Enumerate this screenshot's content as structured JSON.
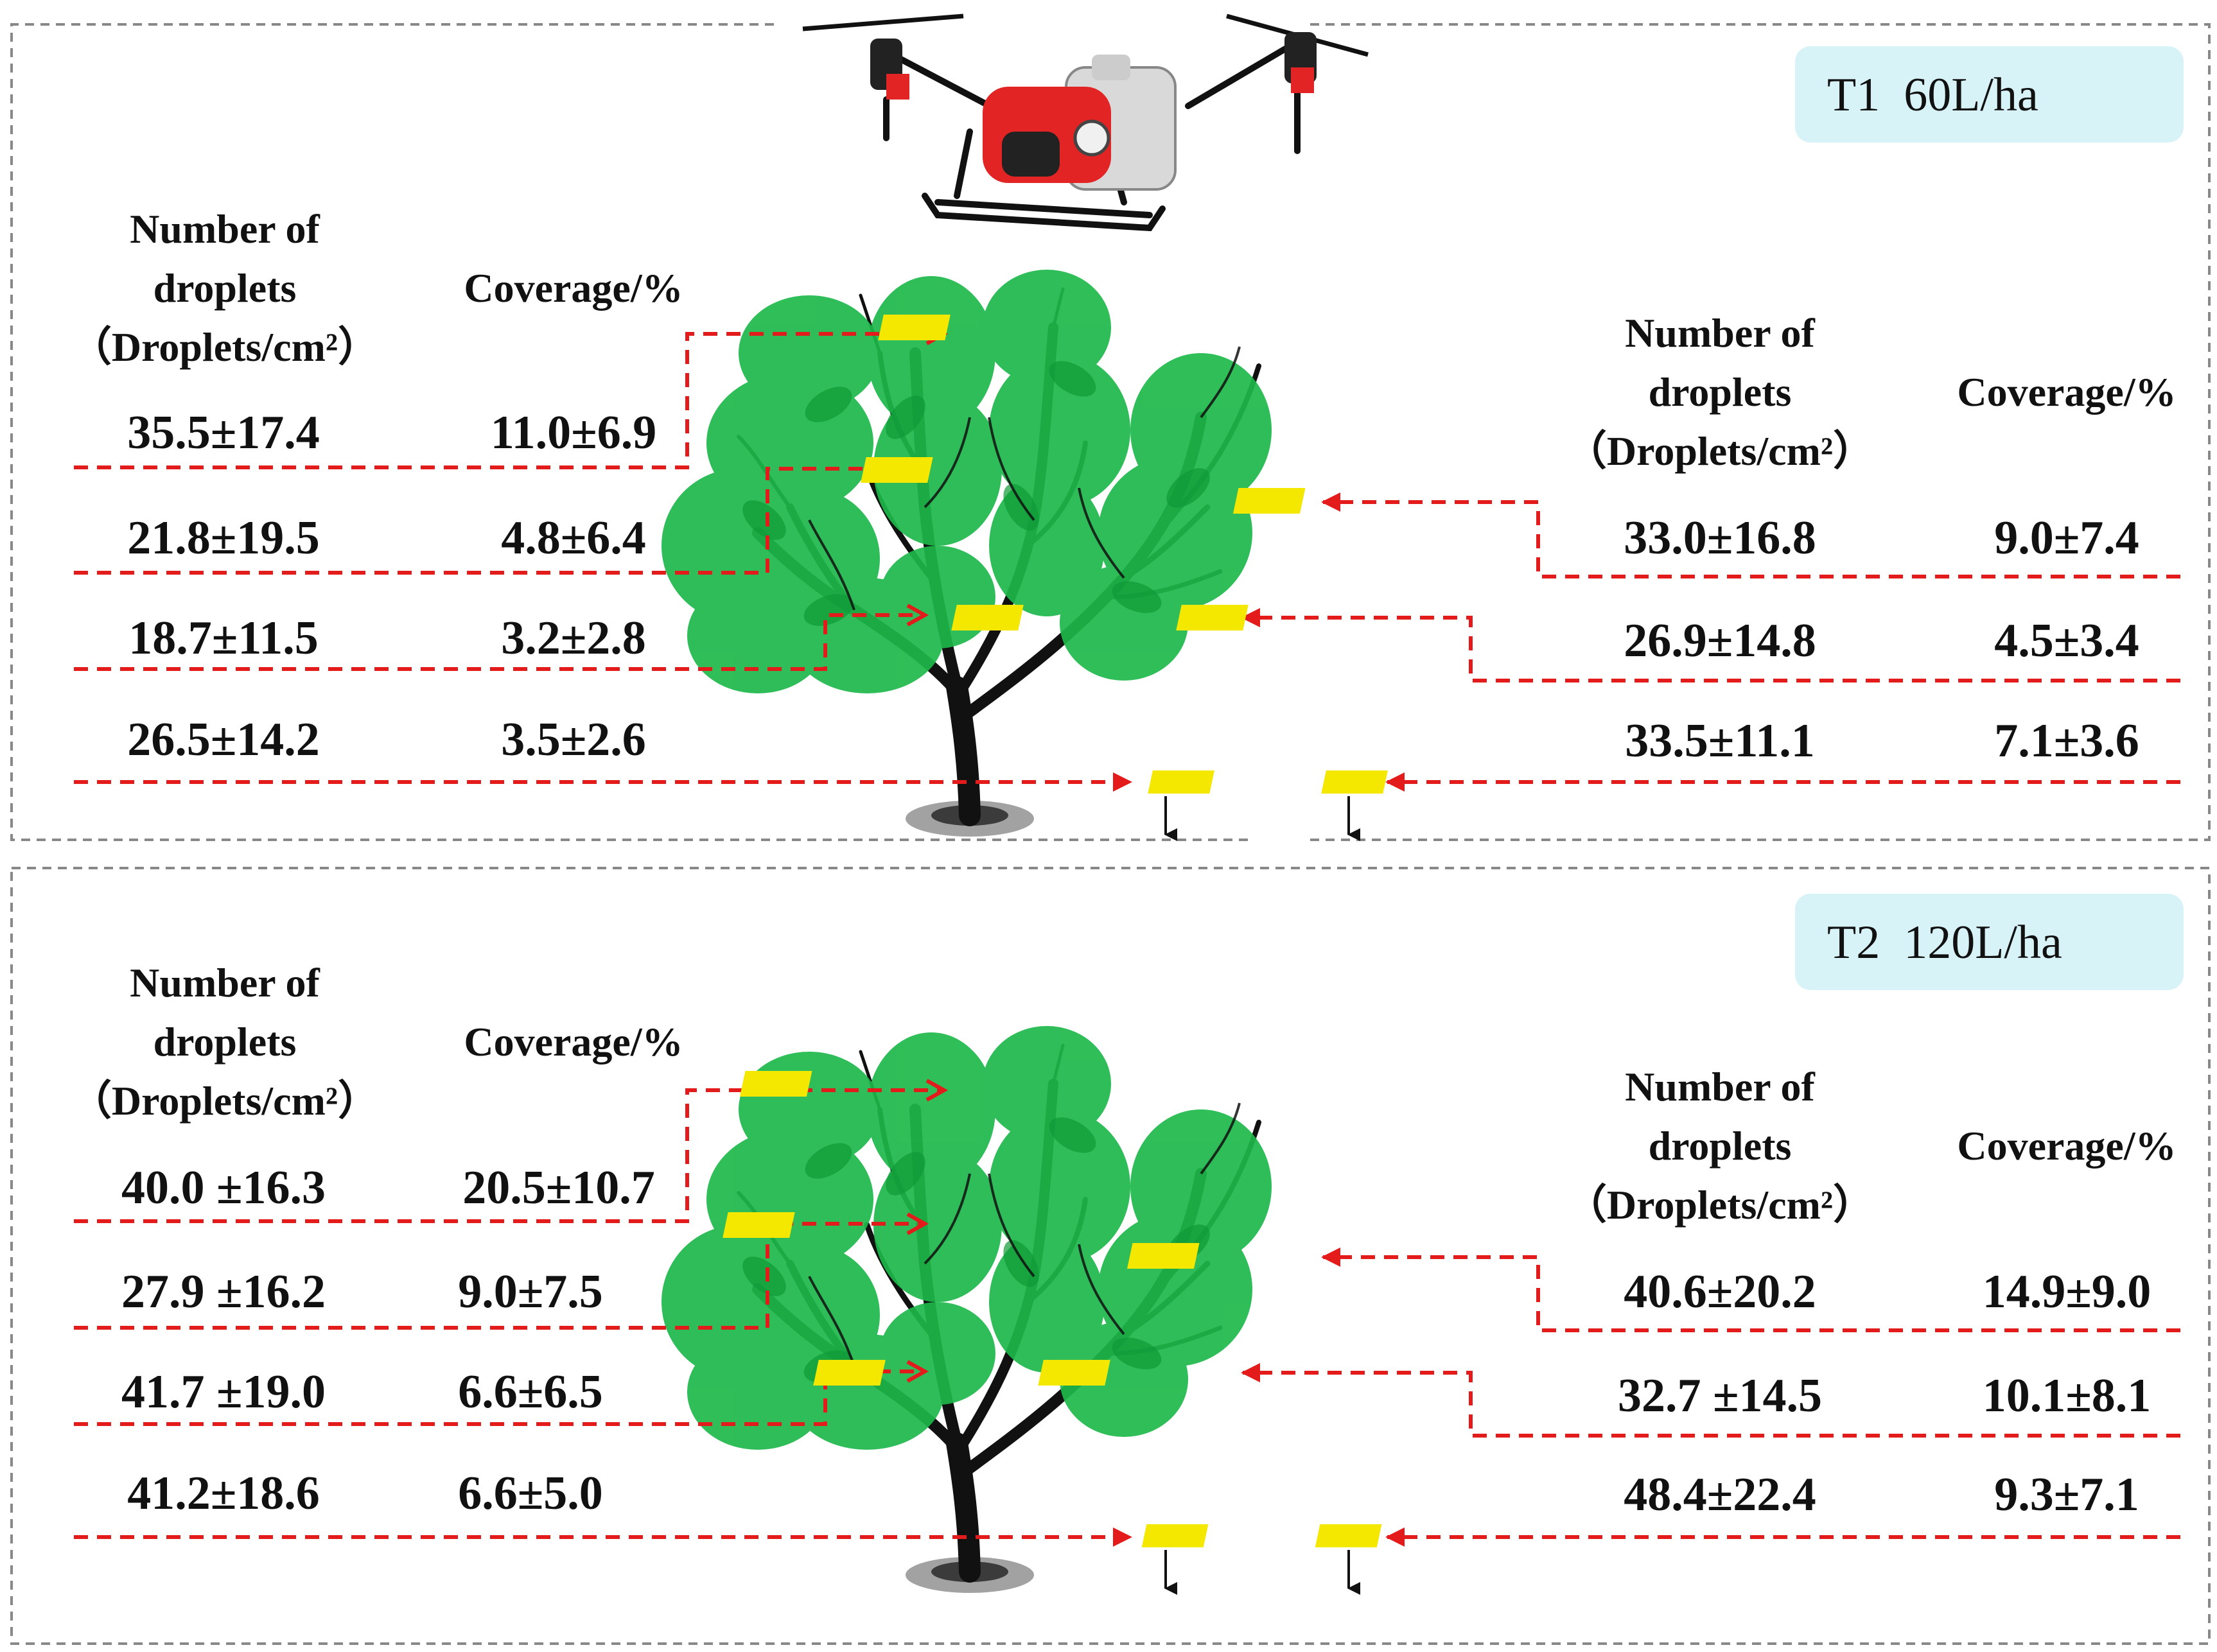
{
  "header": {
    "number_line1": "Number of",
    "number_line2": "droplets",
    "number_line3": "（Droplets/cm²）",
    "coverage": "Coverage/%"
  },
  "colors": {
    "leaf": "#1db84a",
    "branch": "#111111",
    "card": "#f5e800",
    "guide": "#e31b1b",
    "badge_bg": "#d8f3f8",
    "panel_border": "#888888",
    "drone_body": "#e32424"
  },
  "panels": [
    {
      "badge": "T1  60L/ha",
      "left_rows": [
        {
          "number": "35.5±17.4",
          "coverage": "11.0±6.9"
        },
        {
          "number": "21.8±19.5",
          "coverage": "4.8±6.4"
        },
        {
          "number": "18.7±11.5",
          "coverage": "3.2±2.8"
        },
        {
          "number": "26.5±14.2",
          "coverage": "3.5±2.6"
        }
      ],
      "right_rows": [
        {
          "number": "33.0±16.8",
          "coverage": "9.0±7.4"
        },
        {
          "number": "26.9±14.8",
          "coverage": "4.5±3.4"
        },
        {
          "number": "33.5±11.1",
          "coverage": "7.1±3.6"
        }
      ]
    },
    {
      "badge": "T2  120L/ha",
      "left_rows": [
        {
          "number": "40.0 ±16.3",
          "coverage": "20.5±10.7"
        },
        {
          "number": "27.9 ±16.2",
          "coverage": "9.0±7.5"
        },
        {
          "number": "41.7 ±19.0",
          "coverage": "6.6±6.5"
        },
        {
          "number": "41.2±18.6",
          "coverage": "6.6±5.0"
        }
      ],
      "right_rows": [
        {
          "number": "40.6±20.2",
          "coverage": "14.9±9.0"
        },
        {
          "number": "32.7 ±14.5",
          "coverage": "10.1±8.1"
        },
        {
          "number": "48.4±22.4",
          "coverage": "9.3±7.1"
        }
      ]
    }
  ]
}
